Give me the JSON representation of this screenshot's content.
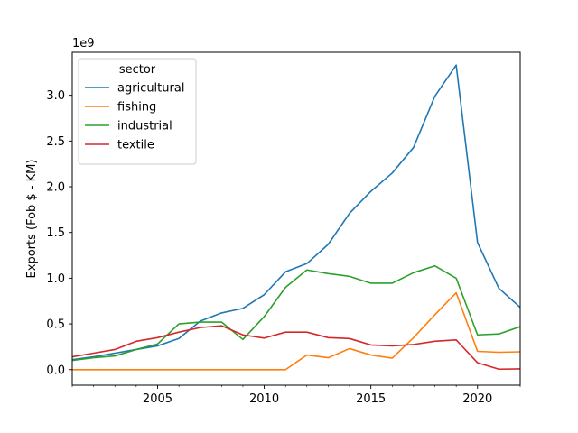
{
  "chart_data": {
    "type": "line",
    "title": "",
    "xlabel": "",
    "ylabel": "Exports (Fob $ - KM)",
    "y_offset_text": "1e9",
    "xlim": [
      2001,
      2022
    ],
    "ylim": [
      -170000000,
      3470000000
    ],
    "x_ticks": [
      2005,
      2010,
      2015,
      2020
    ],
    "y_ticks": [
      0,
      500000000,
      1000000000,
      1500000000,
      2000000000,
      2500000000,
      3000000000
    ],
    "y_tick_labels": [
      "0.0",
      "0.5",
      "1.0",
      "1.5",
      "2.0",
      "2.5",
      "3.0"
    ],
    "grid": false,
    "legend": {
      "title": "sector",
      "placement": "top-left"
    },
    "x": [
      2001,
      2002,
      2003,
      2004,
      2005,
      2006,
      2007,
      2008,
      2009,
      2010,
      2011,
      2012,
      2013,
      2014,
      2015,
      2016,
      2017,
      2018,
      2019,
      2020,
      2021,
      2022
    ],
    "series": [
      {
        "name": "agricultural",
        "color": "#1f77b4",
        "values": [
          110000000,
          140000000,
          180000000,
          220000000,
          260000000,
          340000000,
          530000000,
          620000000,
          670000000,
          820000000,
          1070000000,
          1160000000,
          1370000000,
          1710000000,
          1950000000,
          2150000000,
          2430000000,
          2990000000,
          3330000000,
          1390000000,
          890000000,
          680000000
        ]
      },
      {
        "name": "fishing",
        "color": "#ff7f0e",
        "values": [
          0,
          0,
          0,
          0,
          0,
          0,
          0,
          0,
          0,
          0,
          0,
          160000000,
          130000000,
          230000000,
          160000000,
          125000000,
          350000000,
          600000000,
          840000000,
          200000000,
          190000000,
          195000000
        ]
      },
      {
        "name": "industrial",
        "color": "#2ca02c",
        "values": [
          100000000,
          130000000,
          150000000,
          220000000,
          280000000,
          500000000,
          520000000,
          520000000,
          330000000,
          580000000,
          900000000,
          1090000000,
          1050000000,
          1020000000,
          945000000,
          945000000,
          1060000000,
          1135000000,
          1000000000,
          380000000,
          390000000,
          470000000
        ]
      },
      {
        "name": "textile",
        "color": "#d62728",
        "values": [
          140000000,
          180000000,
          220000000,
          310000000,
          350000000,
          410000000,
          460000000,
          480000000,
          380000000,
          345000000,
          410000000,
          410000000,
          350000000,
          340000000,
          270000000,
          260000000,
          275000000,
          310000000,
          325000000,
          75000000,
          5000000,
          8000000
        ]
      }
    ]
  }
}
